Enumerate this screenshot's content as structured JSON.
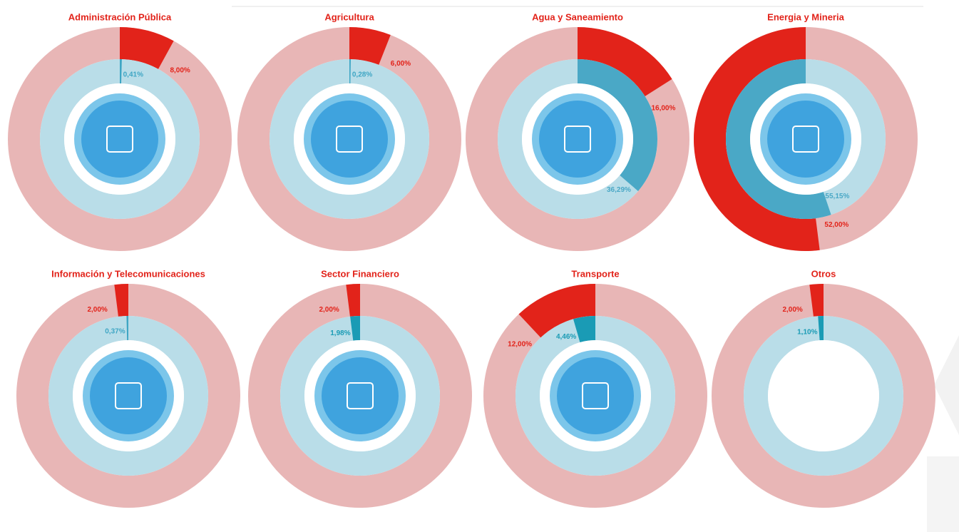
{
  "chart_data": [
    {
      "type": "donut",
      "title": "Administración Pública",
      "values": [
        8,
        0.41
      ],
      "value_labels": [
        "8,00%",
        "0,41%"
      ],
      "colors": [
        "#e2231a",
        "#3fa6c4"
      ],
      "track_colors": [
        "#e8b6b6",
        "#b9dde8"
      ],
      "clockwise": true,
      "icon": true
    },
    {
      "type": "donut",
      "title": "Agricultura",
      "values": [
        6,
        0.28
      ],
      "value_labels": [
        "6,00%",
        "0,28%"
      ],
      "colors": [
        "#e2231a",
        "#3fa6c4"
      ],
      "track_colors": [
        "#e8b6b6",
        "#b9dde8"
      ],
      "clockwise": true,
      "icon": true
    },
    {
      "type": "donut",
      "title": "Agua y Saneamiento",
      "values": [
        16,
        36.29
      ],
      "value_labels": [
        "16,00%",
        "36,29%"
      ],
      "colors": [
        "#e2231a",
        "#4aa8c6"
      ],
      "track_colors": [
        "#e8b6b6",
        "#b9dde8"
      ],
      "clockwise": true,
      "icon": true
    },
    {
      "type": "donut",
      "title": "Energia y Mineria",
      "values": [
        52,
        55.15
      ],
      "value_labels": [
        "52,00%",
        "55,15%"
      ],
      "colors": [
        "#e2231a",
        "#4aa8c6"
      ],
      "track_colors": [
        "#e8b6b6",
        "#b9dde8"
      ],
      "clockwise": false,
      "icon": true
    },
    {
      "type": "donut",
      "title": "Información y Telecomunicaciones",
      "values": [
        2,
        0.37
      ],
      "value_labels": [
        "2,00%",
        "0,37%"
      ],
      "colors": [
        "#e2231a",
        "#3fa6c4"
      ],
      "track_colors": [
        "#e8b6b6",
        "#b9dde8"
      ],
      "clockwise": false,
      "icon": true
    },
    {
      "type": "donut",
      "title": "Sector Financiero",
      "values": [
        2,
        1.98
      ],
      "value_labels": [
        "2,00%",
        "1,98%"
      ],
      "colors": [
        "#e2231a",
        "#1a9bb5"
      ],
      "track_colors": [
        "#e8b6b6",
        "#b9dde8"
      ],
      "clockwise": false,
      "icon": true
    },
    {
      "type": "donut",
      "title": "Transporte",
      "values": [
        12,
        4.46
      ],
      "value_labels": [
        "12,00%",
        "4,46%"
      ],
      "colors": [
        "#e2231a",
        "#1a9bb5"
      ],
      "track_colors": [
        "#e8b6b6",
        "#b9dde8"
      ],
      "clockwise": false,
      "icon": true
    },
    {
      "type": "donut",
      "title": "Otros",
      "values": [
        2,
        1.1
      ],
      "value_labels": [
        "2,00%",
        "1,10%"
      ],
      "colors": [
        "#e2231a",
        "#1a9bb5"
      ],
      "track_colors": [
        "#e8b6b6",
        "#b9dde8"
      ],
      "clockwise": false,
      "icon": false
    }
  ]
}
